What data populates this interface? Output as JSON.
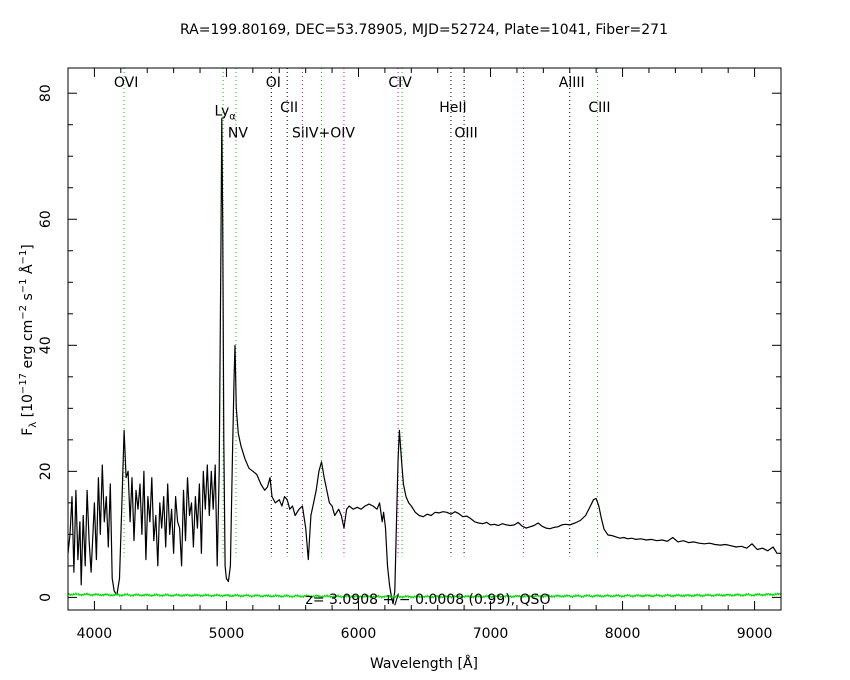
{
  "chart_data": {
    "type": "line",
    "title": "RA=199.80169, DEC=53.78905, MJD=52724, Plate=1041, Fiber=271",
    "xlabel_main": "Wavelength [",
    "xlabel_unit": "Å",
    "xlabel_end": "]",
    "ylabel_prefix": "F",
    "ylabel_sub": "λ",
    "ylabel_open": " [10",
    "ylabel_exp1": "−17",
    "ylabel_mid1": " erg cm",
    "ylabel_exp2": "−2",
    "ylabel_mid2": " s",
    "ylabel_exp3": "−1",
    "ylabel_unit": " Å",
    "ylabel_exp4": "−1",
    "ylabel_close": "]",
    "xlim": [
      3800,
      9200
    ],
    "ylim": [
      -2,
      84
    ],
    "xticks": [
      4000,
      5000,
      6000,
      7000,
      8000,
      9000
    ],
    "xtick_labels": [
      "4000",
      "5000",
      "6000",
      "7000",
      "8000",
      "9000"
    ],
    "yticks": [
      0,
      20,
      40,
      60,
      80
    ],
    "ytick_labels": [
      "0",
      "20",
      "40",
      "60",
      "80"
    ],
    "annotation": "z= 3.0908 +/− 0.0008 (0.99), QSO",
    "colors": {
      "flux": "#000000",
      "error": "#00dd00",
      "green_line": "#00cc00",
      "magenta_line": "#cc00cc",
      "black_line": "#000000"
    },
    "lines": [
      {
        "x": 4225,
        "color": "green",
        "label": "OVI",
        "label_y": 81
      },
      {
        "x": 4975,
        "color": "green",
        "label": "Lyα",
        "label_y": 76.5,
        "label_main": "Ly",
        "label_sub": "α"
      },
      {
        "x": 5072,
        "color": "green",
        "label": "NV",
        "label_y": 73
      },
      {
        "x": 5340,
        "color": "black",
        "label": "OI",
        "label_y": 81
      },
      {
        "x": 5460,
        "color": "black",
        "label": "CII",
        "label_y": 77
      },
      {
        "x": 5575,
        "color": "magenta",
        "label": "",
        "label_y": 0
      },
      {
        "x": 5720,
        "color": "green",
        "label": "SiIV+OIV",
        "label_y": 73
      },
      {
        "x": 5890,
        "color": "magenta",
        "label": "",
        "label_y": 0
      },
      {
        "x": 6300,
        "color": "magenta",
        "label": "CIV",
        "label_y": 81
      },
      {
        "x": 6330,
        "color": "green",
        "label": "",
        "label_y": 0
      },
      {
        "x": 6700,
        "color": "black",
        "label": "HeII",
        "label_y": 77
      },
      {
        "x": 6800,
        "color": "black",
        "label": "OIII",
        "label_y": 73
      },
      {
        "x": 7250,
        "color": "magenta",
        "label": "",
        "label_y": 0
      },
      {
        "x": 7600,
        "color": "black",
        "label": "AlIII",
        "label_y": 81
      },
      {
        "x": 7810,
        "color": "green",
        "label": "CIII",
        "label_y": 77
      }
    ],
    "flux_anchors": [
      [
        3800,
        7
      ],
      [
        3815,
        10
      ],
      [
        3830,
        16
      ],
      [
        3845,
        4
      ],
      [
        3860,
        17
      ],
      [
        3875,
        6
      ],
      [
        3890,
        12
      ],
      [
        3900,
        2
      ],
      [
        3915,
        13
      ],
      [
        3930,
        5
      ],
      [
        3945,
        17
      ],
      [
        3960,
        9
      ],
      [
        3975,
        4
      ],
      [
        4000,
        15
      ],
      [
        4015,
        6
      ],
      [
        4030,
        19
      ],
      [
        4045,
        10
      ],
      [
        4060,
        21
      ],
      [
        4075,
        12
      ],
      [
        4090,
        16
      ],
      [
        4105,
        8
      ],
      [
        4120,
        18
      ],
      [
        4135,
        3
      ],
      [
        4150,
        1
      ],
      [
        4170,
        0.4
      ],
      [
        4190,
        3
      ],
      [
        4210,
        16
      ],
      [
        4225,
        26.5
      ],
      [
        4240,
        19
      ],
      [
        4255,
        20
      ],
      [
        4270,
        12
      ],
      [
        4285,
        19
      ],
      [
        4300,
        9
      ],
      [
        4315,
        17
      ],
      [
        4330,
        14
      ],
      [
        4345,
        18
      ],
      [
        4360,
        10
      ],
      [
        4375,
        20
      ],
      [
        4390,
        6
      ],
      [
        4405,
        16
      ],
      [
        4420,
        12
      ],
      [
        4435,
        19
      ],
      [
        4450,
        9
      ],
      [
        4465,
        13
      ],
      [
        4480,
        5
      ],
      [
        4495,
        15
      ],
      [
        4510,
        11
      ],
      [
        4525,
        16
      ],
      [
        4540,
        8
      ],
      [
        4555,
        18
      ],
      [
        4570,
        10
      ],
      [
        4585,
        14
      ],
      [
        4600,
        7
      ],
      [
        4615,
        16
      ],
      [
        4630,
        12
      ],
      [
        4645,
        11
      ],
      [
        4660,
        5
      ],
      [
        4675,
        17
      ],
      [
        4690,
        9
      ],
      [
        4705,
        19
      ],
      [
        4720,
        13
      ],
      [
        4735,
        15
      ],
      [
        4750,
        8
      ],
      [
        4765,
        16
      ],
      [
        4780,
        11
      ],
      [
        4795,
        18
      ],
      [
        4810,
        7
      ],
      [
        4825,
        20
      ],
      [
        4840,
        14
      ],
      [
        4855,
        21
      ],
      [
        4870,
        13
      ],
      [
        4885,
        20
      ],
      [
        4900,
        14
      ],
      [
        4915,
        21
      ],
      [
        4930,
        5
      ],
      [
        4945,
        20
      ],
      [
        4958,
        55
      ],
      [
        4965,
        76
      ],
      [
        4972,
        60
      ],
      [
        4980,
        25
      ],
      [
        4990,
        5
      ],
      [
        5000,
        3
      ],
      [
        5015,
        2.5
      ],
      [
        5030,
        5
      ],
      [
        5045,
        22
      ],
      [
        5058,
        35
      ],
      [
        5065,
        40
      ],
      [
        5075,
        30
      ],
      [
        5090,
        26
      ],
      [
        5110,
        24
      ],
      [
        5140,
        22
      ],
      [
        5170,
        20.5
      ],
      [
        5200,
        20
      ],
      [
        5230,
        19.5
      ],
      [
        5260,
        18
      ],
      [
        5290,
        17
      ],
      [
        5310,
        17.5
      ],
      [
        5330,
        19
      ],
      [
        5345,
        16
      ],
      [
        5370,
        15
      ],
      [
        5400,
        15.5
      ],
      [
        5420,
        14.5
      ],
      [
        5440,
        16
      ],
      [
        5460,
        15.5
      ],
      [
        5480,
        14
      ],
      [
        5500,
        14.5
      ],
      [
        5520,
        13
      ],
      [
        5550,
        14
      ],
      [
        5575,
        14.5
      ],
      [
        5600,
        11
      ],
      [
        5620,
        6
      ],
      [
        5640,
        13
      ],
      [
        5660,
        15
      ],
      [
        5680,
        17
      ],
      [
        5700,
        20
      ],
      [
        5720,
        21.5
      ],
      [
        5740,
        19
      ],
      [
        5760,
        17
      ],
      [
        5780,
        15
      ],
      [
        5800,
        14.5
      ],
      [
        5820,
        13
      ],
      [
        5850,
        14
      ],
      [
        5870,
        13
      ],
      [
        5890,
        11
      ],
      [
        5910,
        14
      ],
      [
        5930,
        14.5
      ],
      [
        5960,
        14
      ],
      [
        5990,
        14.3
      ],
      [
        6020,
        14
      ],
      [
        6050,
        14.5
      ],
      [
        6080,
        14.8
      ],
      [
        6110,
        14.5
      ],
      [
        6140,
        14
      ],
      [
        6160,
        15
      ],
      [
        6180,
        12
      ],
      [
        6190,
        13.5
      ],
      [
        6205,
        11
      ],
      [
        6220,
        5
      ],
      [
        6235,
        2
      ],
      [
        6250,
        0
      ],
      [
        6262,
        -1
      ],
      [
        6275,
        1
      ],
      [
        6290,
        14
      ],
      [
        6300,
        22
      ],
      [
        6310,
        26.5
      ],
      [
        6325,
        22
      ],
      [
        6340,
        18
      ],
      [
        6360,
        16
      ],
      [
        6380,
        15
      ],
      [
        6400,
        14.5
      ],
      [
        6430,
        13.5
      ],
      [
        6460,
        13
      ],
      [
        6490,
        12.8
      ],
      [
        6520,
        13.2
      ],
      [
        6550,
        13
      ],
      [
        6580,
        13.5
      ],
      [
        6610,
        13.4
      ],
      [
        6640,
        13.6
      ],
      [
        6670,
        13.5
      ],
      [
        6700,
        13.2
      ],
      [
        6730,
        13.6
      ],
      [
        6760,
        13.3
      ],
      [
        6790,
        12.8
      ],
      [
        6820,
        12.9
      ],
      [
        6850,
        12.5
      ],
      [
        6880,
        12
      ],
      [
        6910,
        11.8
      ],
      [
        6940,
        11.7
      ],
      [
        6970,
        11.9
      ],
      [
        7000,
        11.5
      ],
      [
        7030,
        11.6
      ],
      [
        7060,
        11.4
      ],
      [
        7090,
        11.7
      ],
      [
        7120,
        11.5
      ],
      [
        7150,
        11.4
      ],
      [
        7180,
        11.5
      ],
      [
        7210,
        11.9
      ],
      [
        7240,
        11.3
      ],
      [
        7270,
        11
      ],
      [
        7300,
        11.2
      ],
      [
        7330,
        11.4
      ],
      [
        7360,
        11.8
      ],
      [
        7390,
        11.3
      ],
      [
        7420,
        11
      ],
      [
        7450,
        10.9
      ],
      [
        7480,
        11.1
      ],
      [
        7510,
        11.2
      ],
      [
        7540,
        11.5
      ],
      [
        7570,
        11.6
      ],
      [
        7600,
        11.5
      ],
      [
        7640,
        11.8
      ],
      [
        7680,
        12.2
      ],
      [
        7720,
        13
      ],
      [
        7750,
        14.2
      ],
      [
        7780,
        15.5
      ],
      [
        7800,
        15.7
      ],
      [
        7820,
        14.5
      ],
      [
        7840,
        12.5
      ],
      [
        7860,
        10.8
      ],
      [
        7890,
        9.9
      ],
      [
        7920,
        9.8
      ],
      [
        7950,
        9.6
      ],
      [
        7980,
        9.4
      ],
      [
        8010,
        9.5
      ],
      [
        8040,
        9.3
      ],
      [
        8070,
        9.4
      ],
      [
        8100,
        9.2
      ],
      [
        8140,
        9.3
      ],
      [
        8180,
        9.1
      ],
      [
        8220,
        9.2
      ],
      [
        8260,
        9
      ],
      [
        8300,
        9.1
      ],
      [
        8340,
        8.9
      ],
      [
        8380,
        9.5
      ],
      [
        8420,
        8.8
      ],
      [
        8460,
        9
      ],
      [
        8500,
        8.7
      ],
      [
        8540,
        8.8
      ],
      [
        8580,
        8.6
      ],
      [
        8620,
        8.5
      ],
      [
        8660,
        8.6
      ],
      [
        8700,
        8.4
      ],
      [
        8740,
        8.3
      ],
      [
        8780,
        8.4
      ],
      [
        8820,
        8.2
      ],
      [
        8860,
        8
      ],
      [
        8900,
        8.1
      ],
      [
        8940,
        7.8
      ],
      [
        8980,
        8.5
      ],
      [
        9020,
        7.6
      ],
      [
        9060,
        7.8
      ],
      [
        9100,
        7.4
      ],
      [
        9140,
        8
      ],
      [
        9170,
        7
      ],
      [
        9200,
        7
      ]
    ],
    "error_anchors": [
      [
        3800,
        0.5
      ],
      [
        4100,
        0.4
      ],
      [
        4500,
        0.35
      ],
      [
        5000,
        0.3
      ],
      [
        5500,
        0.2
      ],
      [
        6000,
        0.15
      ],
      [
        6500,
        0.1
      ],
      [
        7000,
        0.15
      ],
      [
        7500,
        0.2
      ],
      [
        8000,
        0.25
      ],
      [
        8500,
        0.3
      ],
      [
        9000,
        0.4
      ],
      [
        9200,
        0.5
      ]
    ]
  }
}
